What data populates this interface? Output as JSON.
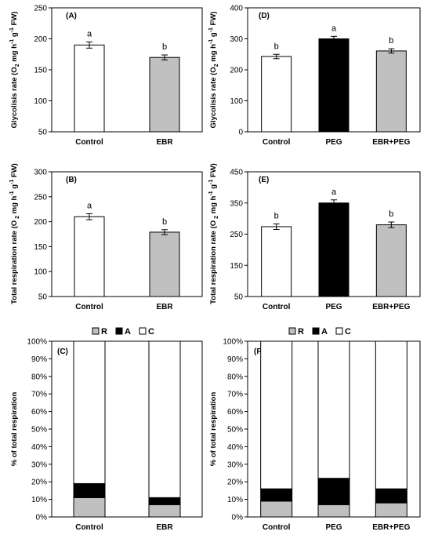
{
  "chart_data": [
    {
      "panel": "(A)",
      "type": "bar",
      "ylabel_parts": [
        "Glycolisis rate (O",
        "2",
        " mg h",
        "-1",
        " g",
        "-1",
        " FW)"
      ],
      "ylim": [
        50,
        250
      ],
      "yticks": [
        "50",
        "100",
        "150",
        "200",
        "250"
      ],
      "categories": [
        "Control",
        "EBR"
      ],
      "values": [
        190,
        170
      ],
      "errors": [
        5,
        4
      ],
      "colors": [
        "#ffffff",
        "#c0c0c0"
      ],
      "letters": [
        "a",
        "b"
      ]
    },
    {
      "panel": "(D)",
      "type": "bar",
      "ylabel_parts": [
        "Glycolisis rate (O",
        "2",
        " mg h",
        "-1",
        " g",
        "-1",
        " FW)"
      ],
      "ylim": [
        0,
        400
      ],
      "yticks": [
        "0",
        "100",
        "200",
        "300",
        "400"
      ],
      "categories": [
        "Control",
        "PEG",
        "EBR+PEG"
      ],
      "values": [
        243,
        300,
        261
      ],
      "errors": [
        7,
        8,
        7
      ],
      "colors": [
        "#ffffff",
        "#000000",
        "#c0c0c0"
      ],
      "letters": [
        "b",
        "a",
        "b"
      ]
    },
    {
      "panel": "(B)",
      "type": "bar",
      "ylabel_parts": [
        "Total respiration rate (O",
        " 2",
        " mg h",
        "-1",
        " g",
        "-1",
        " FW)"
      ],
      "ylim": [
        50,
        300
      ],
      "yticks": [
        "50",
        "100",
        "150",
        "200",
        "250",
        "300"
      ],
      "categories": [
        "Control",
        "EBR"
      ],
      "values": [
        210,
        179
      ],
      "errors": [
        6,
        5
      ],
      "colors": [
        "#ffffff",
        "#c0c0c0"
      ],
      "letters": [
        "a",
        "b"
      ]
    },
    {
      "panel": "(E)",
      "type": "bar",
      "ylabel_parts": [
        "Total respiration rate (O",
        " 2",
        " mg h",
        "-1",
        " g",
        "-1",
        "  FW)"
      ],
      "ylim": [
        50,
        450
      ],
      "yticks": [
        "50",
        "150",
        "250",
        "350",
        "450"
      ],
      "categories": [
        "Control",
        "PEG",
        "EBR+PEG"
      ],
      "values": [
        274,
        350,
        280
      ],
      "errors": [
        9,
        10,
        9
      ],
      "colors": [
        "#ffffff",
        "#000000",
        "#c0c0c0"
      ],
      "letters": [
        "b",
        "a",
        "b"
      ]
    },
    {
      "panel": "(C)",
      "type": "bar",
      "stacked": true,
      "ylabel": "% of total respiration",
      "ylim": [
        0,
        100
      ],
      "yticks": [
        "0%",
        "10%",
        "20%",
        "30%",
        "40%",
        "50%",
        "60%",
        "70%",
        "80%",
        "90%",
        "100%"
      ],
      "categories": [
        "Control",
        "EBR"
      ],
      "series": [
        {
          "name": "R",
          "color": "#c0c0c0",
          "values": [
            11,
            7
          ]
        },
        {
          "name": "A",
          "color": "#000000",
          "values": [
            8,
            4
          ]
        },
        {
          "name": "C",
          "color": "#ffffff",
          "values": [
            81,
            89
          ]
        }
      ]
    },
    {
      "panel": "(F)",
      "type": "bar",
      "stacked": true,
      "ylabel": "% of total respiration",
      "ylim": [
        0,
        100
      ],
      "yticks": [
        "0%",
        "10%",
        "20%",
        "30%",
        "40%",
        "50%",
        "60%",
        "70%",
        "80%",
        "90%",
        "100%"
      ],
      "categories": [
        "Control",
        "PEG",
        "EBR+PEG"
      ],
      "series": [
        {
          "name": "R",
          "color": "#c0c0c0",
          "values": [
            9,
            7,
            8
          ]
        },
        {
          "name": "A",
          "color": "#000000",
          "values": [
            7,
            15,
            8
          ]
        },
        {
          "name": "C",
          "color": "#ffffff",
          "values": [
            84,
            78,
            84
          ]
        }
      ]
    }
  ]
}
